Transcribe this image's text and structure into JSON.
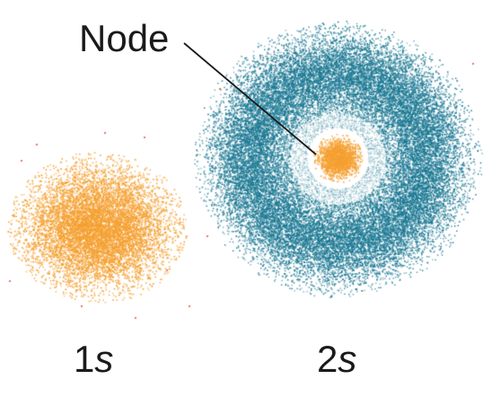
{
  "labels": {
    "node": "Node",
    "orbital_1s_number": "1",
    "orbital_1s_letter": "s",
    "orbital_2s_number": "2",
    "orbital_2s_letter": "s"
  },
  "colors": {
    "inner_cloud": "#f5a031",
    "outer_shell": "#1a7893",
    "stray_dot": "#e4553a",
    "text": "#1a1a1a"
  }
}
